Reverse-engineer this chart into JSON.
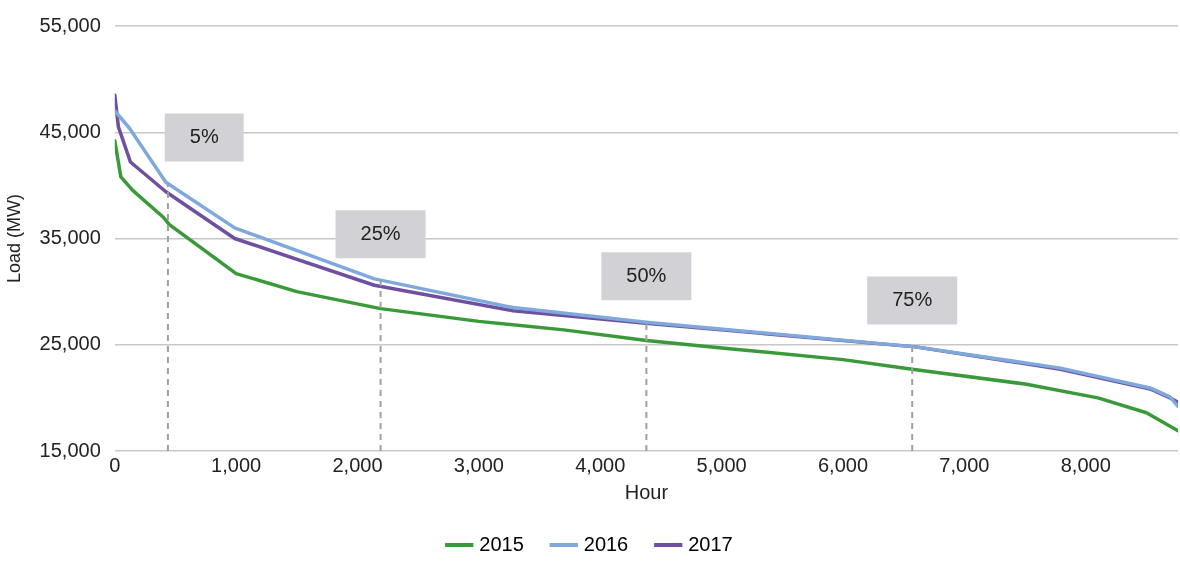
{
  "chart_data": {
    "type": "line",
    "xlabel": "Hour",
    "ylabel": "Load (MW)",
    "xlim": [
      0,
      8760
    ],
    "xticks": [
      {
        "value": 0,
        "label": "0"
      },
      {
        "value": 1000,
        "label": "1,000"
      },
      {
        "value": 2000,
        "label": "2,000"
      },
      {
        "value": 3000,
        "label": "3,000"
      },
      {
        "value": 4000,
        "label": "4,000"
      },
      {
        "value": 5000,
        "label": "5,000"
      },
      {
        "value": 6000,
        "label": "6,000"
      },
      {
        "value": 7000,
        "label": "7,000"
      },
      {
        "value": 8000,
        "label": "8,000"
      }
    ],
    "ylim": [
      15000,
      55000
    ],
    "yticks": [
      {
        "value": 15000,
        "label": "15,000"
      },
      {
        "value": 25000,
        "label": "25,000"
      },
      {
        "value": 35000,
        "label": "35,000"
      },
      {
        "value": 45000,
        "label": "45,000"
      },
      {
        "value": 55000,
        "label": "55,000"
      }
    ],
    "grid": "y",
    "legend": "bottom",
    "marker": "none",
    "line_style": "solid",
    "series": [
      {
        "name": "2015",
        "color": "#3a9a3a",
        "x": [
          0,
          50,
          150,
          400,
          450,
          1000,
          1500,
          2190,
          3000,
          3700,
          4380,
          5000,
          6000,
          6570,
          7500,
          8100,
          8500,
          8760
        ],
        "values": [
          44200,
          40800,
          39500,
          37000,
          36300,
          31700,
          30000,
          28400,
          27200,
          26400,
          25400,
          24700,
          23600,
          22700,
          21300,
          20000,
          18600,
          16900
        ]
      },
      {
        "name": "2016",
        "color": "#7fa8dc",
        "x": [
          0,
          120,
          421,
          988,
          2139,
          3282,
          4399,
          6598,
          7792,
          8540,
          8694,
          8760
        ],
        "values": [
          47000,
          45400,
          40300,
          36000,
          31200,
          28500,
          27100,
          24800,
          22800,
          20900,
          20100,
          19200
        ]
      },
      {
        "name": "2017",
        "color": "#6f4fa0",
        "x": [
          0,
          30,
          129,
          421,
          988,
          2139,
          3282,
          4399,
          6598,
          7792,
          8540,
          8694,
          8760
        ],
        "values": [
          48500,
          45500,
          42200,
          39400,
          35000,
          30600,
          28200,
          27000,
          24800,
          22700,
          20800,
          20000,
          19600
        ]
      }
    ],
    "ref_lines": [
      {
        "axis": "x",
        "value": 438,
        "color": "#a0a0a0",
        "line_style": "dashed"
      },
      {
        "axis": "x",
        "value": 2190,
        "color": "#a0a0a0",
        "line_style": "dashed"
      },
      {
        "axis": "x",
        "value": 4380,
        "color": "#a0a0a0",
        "line_style": "dashed"
      },
      {
        "axis": "x",
        "value": 6570,
        "color": "#a0a0a0",
        "line_style": "dashed"
      }
    ],
    "annotations": [
      "5%",
      "25%",
      "50%",
      "75%"
    ]
  }
}
